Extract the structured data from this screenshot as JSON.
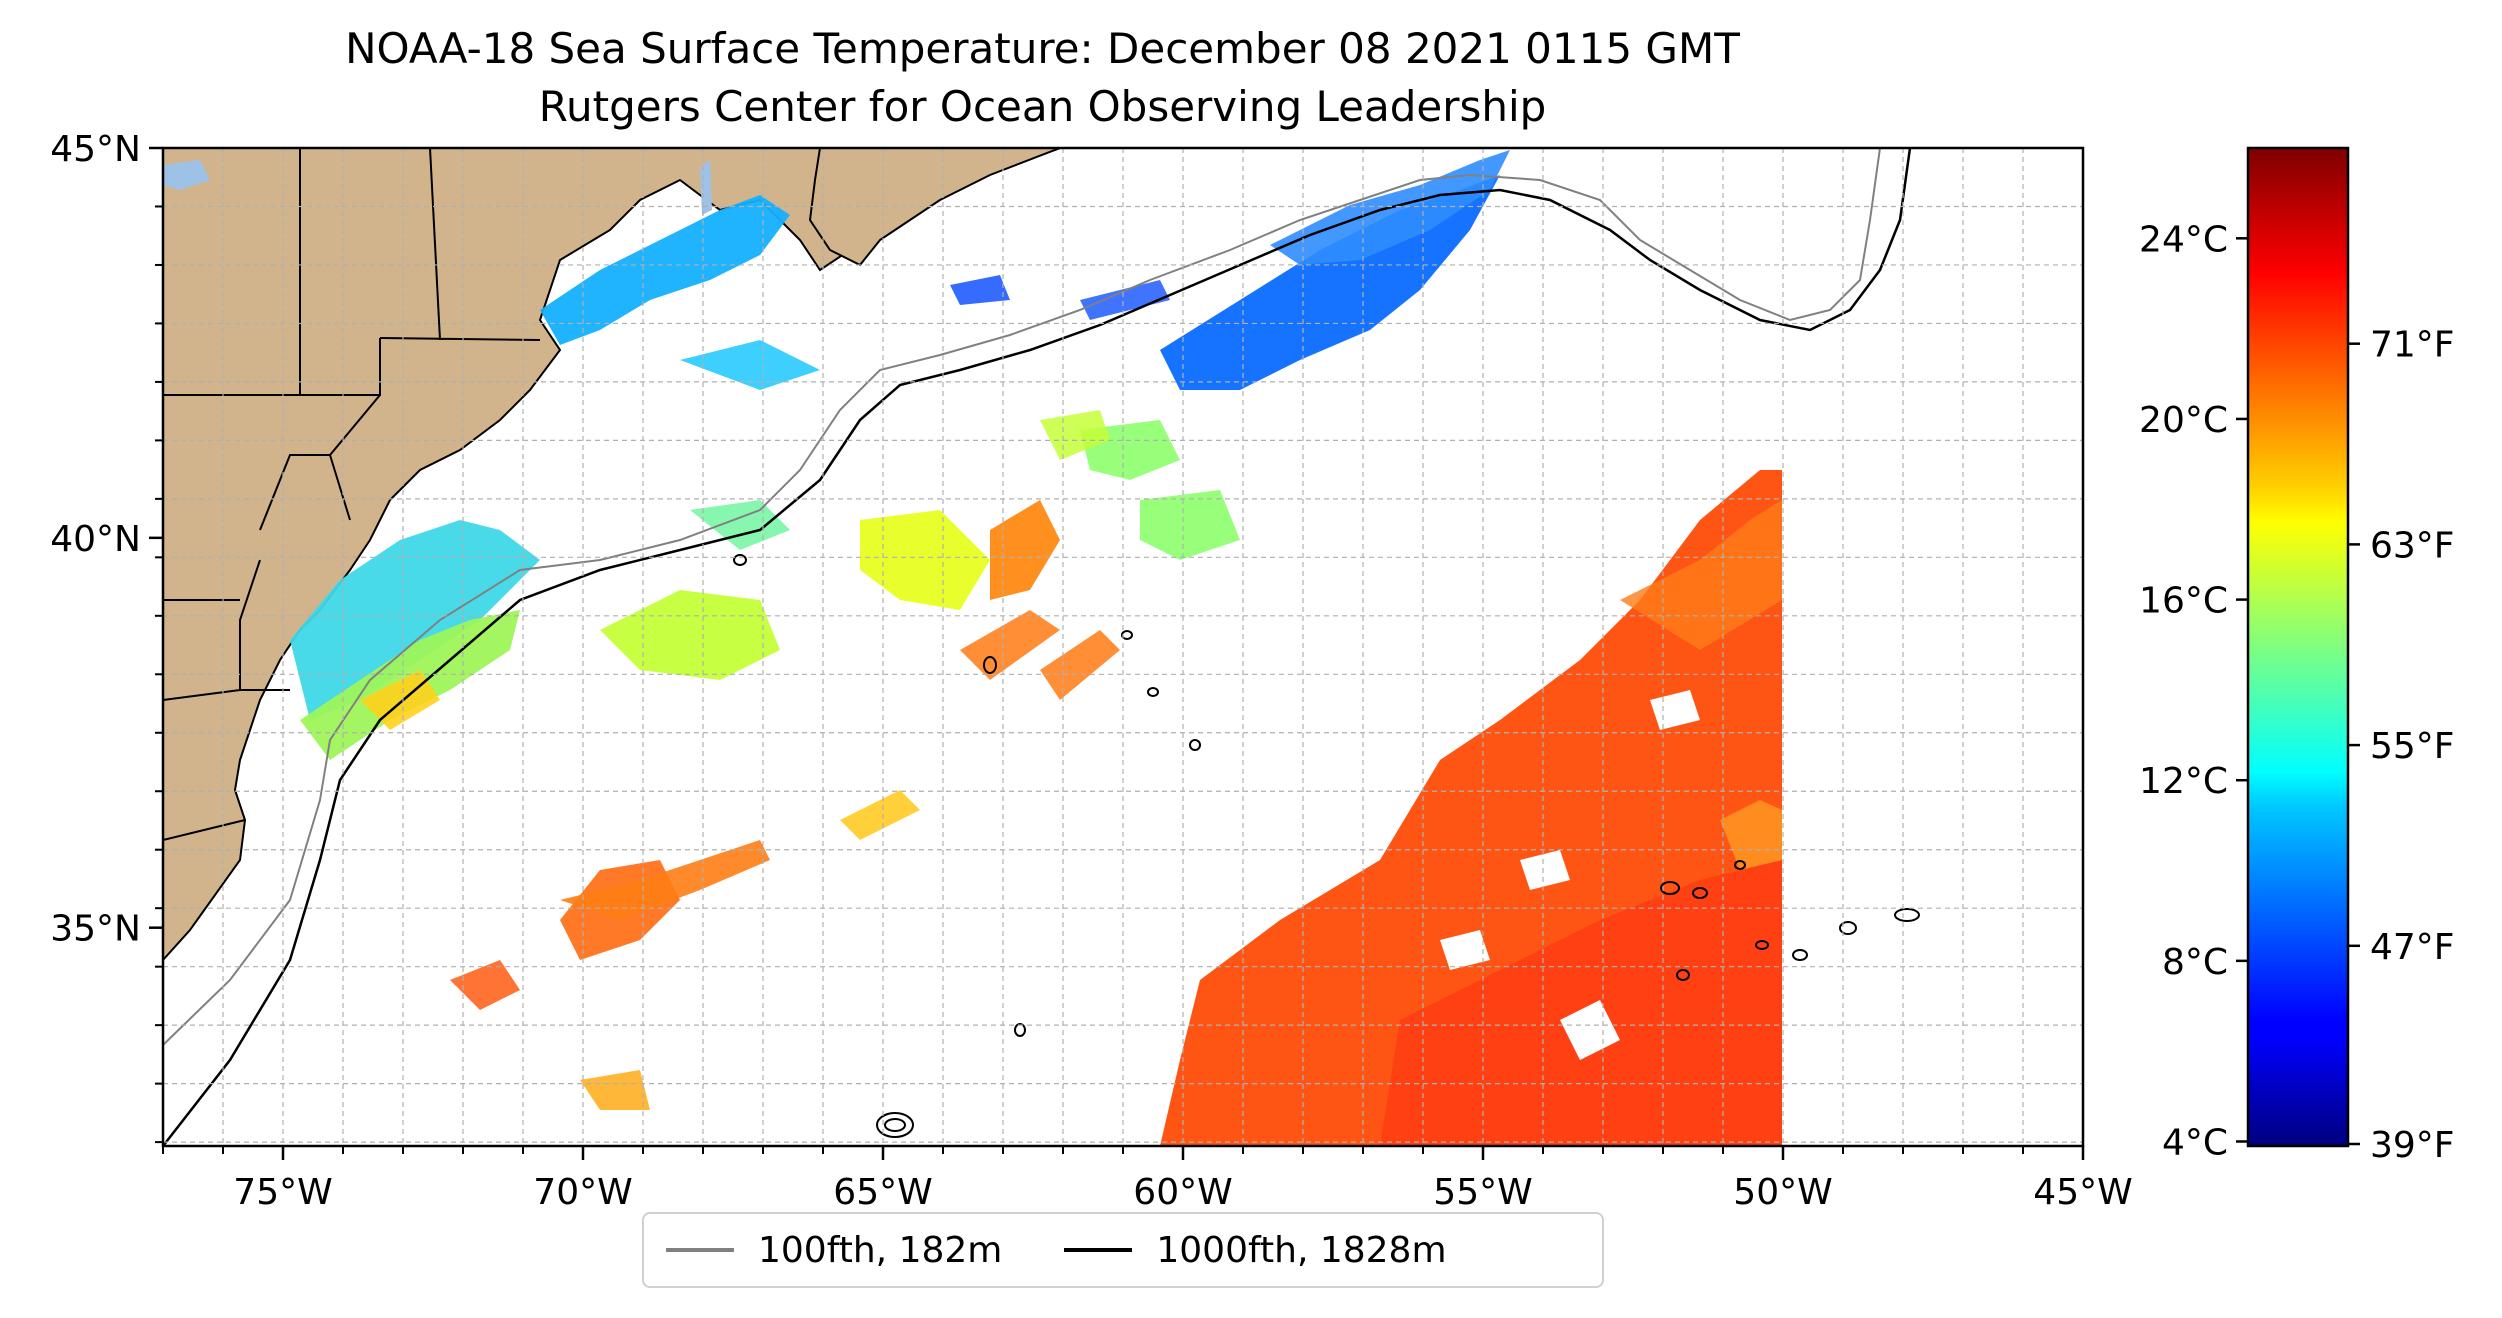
{
  "header": {
    "title": "NOAA-18 Sea Surface Temperature: December 08 2021 0115 GMT",
    "subtitle": "Rutgers Center for Ocean Observing Leadership"
  },
  "map": {
    "lon_range": [
      -77,
      -45
    ],
    "lat_range": [
      32.2,
      45
    ],
    "x_ticks": [
      "75°W",
      "70°W",
      "65°W",
      "60°W",
      "55°W",
      "50°W",
      "45°W"
    ],
    "x_tick_values": [
      -75,
      -70,
      -65,
      -60,
      -55,
      -50,
      -45
    ],
    "y_ticks": [
      "45°N",
      "40°N",
      "35°N"
    ],
    "y_tick_values": [
      45,
      40,
      35
    ],
    "grid": true,
    "land_color": "#d2b48c"
  },
  "legend": {
    "items": [
      {
        "label": "100fth, 182m",
        "color": "#808080"
      },
      {
        "label": "1000fth, 1828m",
        "color": "#000000"
      }
    ]
  },
  "colorbar": {
    "celsius_ticks": [
      "24°C",
      "20°C",
      "16°C",
      "12°C",
      "8°C",
      "4°C"
    ],
    "celsius_values": [
      24,
      20,
      16,
      12,
      8,
      4
    ],
    "fahrenheit_ticks": [
      "71°F",
      "63°F",
      "55°F",
      "47°F",
      "39°F"
    ],
    "fahrenheit_values": [
      71,
      63,
      55,
      47,
      39
    ],
    "range_c": [
      3.9,
      26
    ],
    "colormap": "jet"
  }
}
